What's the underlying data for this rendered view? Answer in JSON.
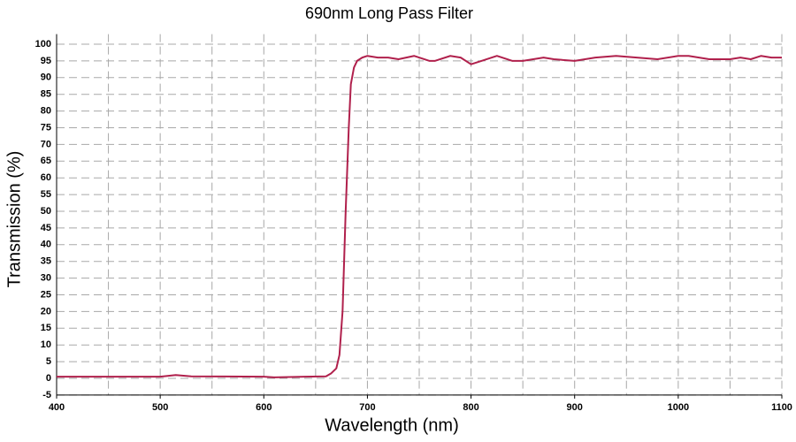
{
  "chart_data": {
    "type": "line",
    "title": "690nm Long Pass Filter",
    "x_label": "Wavelength (nm)",
    "y_label": "Transmission (%)",
    "x": [
      400,
      500,
      515,
      530,
      600,
      610,
      640,
      660,
      665,
      670,
      673,
      676,
      679,
      682,
      684,
      687,
      690,
      695,
      700,
      710,
      720,
      730,
      745,
      760,
      765,
      780,
      790,
      800,
      810,
      825,
      840,
      850,
      870,
      880,
      900,
      920,
      940,
      960,
      980,
      1000,
      1010,
      1030,
      1050,
      1060,
      1070,
      1080,
      1090,
      1100
    ],
    "series": [
      {
        "color": "#b0204c",
        "values": [
          0.5,
          0.5,
          1,
          0.6,
          0.5,
          0.3,
          0.5,
          0.6,
          1.5,
          3,
          7,
          20,
          50,
          75,
          88,
          93,
          95,
          96,
          96.5,
          96,
          96,
          95.5,
          96.5,
          95,
          95,
          96.5,
          96,
          94,
          95,
          96.5,
          95,
          95,
          96,
          95.5,
          95,
          96,
          96.5,
          96,
          95.5,
          96.5,
          96.5,
          95.5,
          95.5,
          96,
          95.5,
          96.5,
          96,
          96
        ]
      }
    ],
    "xlim": [
      400,
      1100
    ],
    "ylim": [
      -5,
      103
    ],
    "xticks": [
      400,
      500,
      600,
      700,
      800,
      900,
      1000,
      1100
    ],
    "xgrid": [
      400,
      450,
      500,
      550,
      600,
      650,
      700,
      750,
      800,
      850,
      900,
      950,
      1000,
      1050,
      1100
    ],
    "yticks": [
      -5,
      0,
      5,
      10,
      15,
      20,
      25,
      30,
      35,
      40,
      45,
      50,
      55,
      60,
      65,
      70,
      75,
      80,
      85,
      90,
      95,
      100
    ],
    "grid": true
  }
}
